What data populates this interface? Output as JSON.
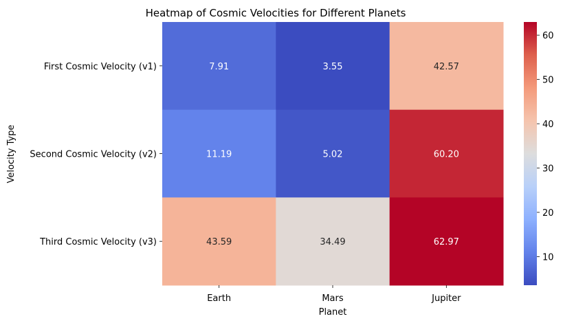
{
  "chart_data": {
    "type": "heatmap",
    "title": "Heatmap of Cosmic Velocities for Different Planets",
    "xlabel": "Planet",
    "ylabel": "Velocity Type",
    "x_categories": [
      "Earth",
      "Mars",
      "Jupiter"
    ],
    "y_categories": [
      "First Cosmic Velocity (v1)",
      "Second Cosmic Velocity (v2)",
      "Third Cosmic Velocity (v3)"
    ],
    "values": [
      [
        7.91,
        3.55,
        42.57
      ],
      [
        11.19,
        5.02,
        60.2
      ],
      [
        43.59,
        34.49,
        62.97
      ]
    ],
    "value_format_decimals": 2,
    "colormap": "coolwarm",
    "colorbar": {
      "range": [
        3.55,
        62.97
      ],
      "ticks": [
        10,
        20,
        30,
        40,
        50,
        60
      ]
    }
  }
}
